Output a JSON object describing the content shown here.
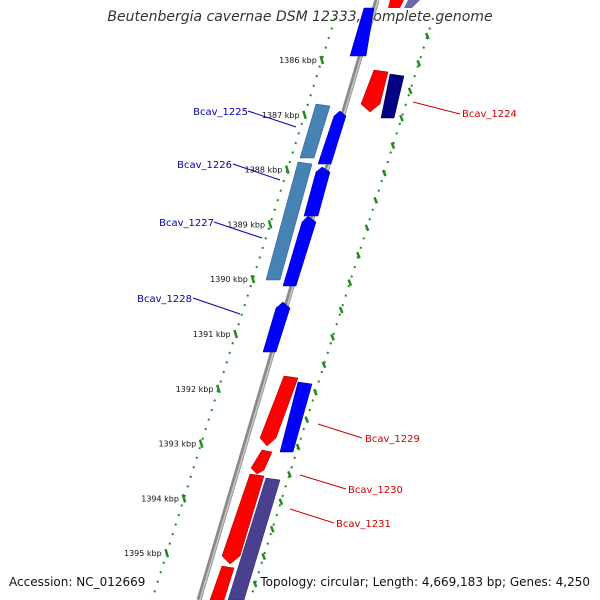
{
  "title": "Beutenbergia cavernae DSM 12333, complete genome",
  "footer": {
    "accession": "Accession: NC_012669",
    "summary": "Topology: circular; Length: 4,669,183 bp; Genes: 4,250"
  },
  "colors": {
    "forward_cds": "#0000ff",
    "reverse_cds": "#ff0000",
    "rna": "#3f7fbf",
    "dark_forward": "#000080",
    "backbone": "#7f7f7f",
    "tick": "#228b22",
    "label_forward": "#0000aa",
    "label_reverse": "#cc0000"
  },
  "scale_labels": [
    "1386 kbp",
    "1387 kbp",
    "1388 kbp",
    "1389 kbp",
    "1390 kbp",
    "1391 kbp",
    "1392 kbp",
    "1393 kbp",
    "1394 kbp",
    "1395 kbp"
  ],
  "gene_labels_left": [
    "Bcav_1225",
    "Bcav_1226",
    "Bcav_1227",
    "Bcav_1228"
  ],
  "gene_labels_right": [
    "Bcav_1224",
    "Bcav_1229",
    "Bcav_1230",
    "Bcav_1231"
  ]
}
